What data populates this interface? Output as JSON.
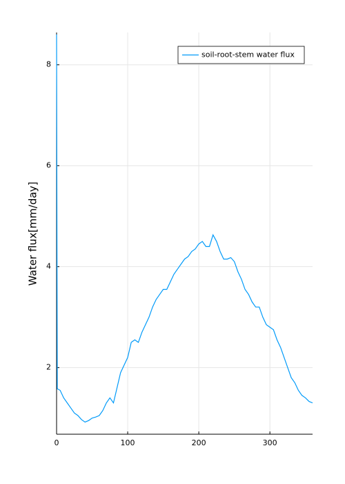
{
  "chart_data": {
    "type": "line",
    "ylabel": "Water flux[mm/day]",
    "x": [
      0,
      1,
      5,
      10,
      15,
      20,
      25,
      30,
      35,
      40,
      45,
      50,
      55,
      60,
      65,
      70,
      75,
      80,
      85,
      90,
      95,
      100,
      105,
      110,
      115,
      120,
      125,
      130,
      135,
      140,
      145,
      150,
      155,
      160,
      165,
      170,
      175,
      180,
      185,
      190,
      195,
      200,
      205,
      210,
      215,
      220,
      225,
      230,
      235,
      240,
      245,
      250,
      255,
      260,
      265,
      270,
      275,
      280,
      285,
      290,
      295,
      300,
      305,
      310,
      315,
      320,
      325,
      330,
      335,
      340,
      345,
      350,
      355,
      360
    ],
    "series": [
      {
        "name": "soil-root-stem water flux",
        "color": "#009af9",
        "values": [
          8.6,
          1.58,
          1.55,
          1.4,
          1.3,
          1.2,
          1.1,
          1.05,
          0.97,
          0.92,
          0.95,
          1.0,
          1.02,
          1.05,
          1.15,
          1.3,
          1.4,
          1.3,
          1.6,
          1.9,
          2.05,
          2.2,
          2.5,
          2.55,
          2.5,
          2.7,
          2.85,
          3.0,
          3.2,
          3.35,
          3.45,
          3.55,
          3.55,
          3.7,
          3.85,
          3.95,
          4.05,
          4.15,
          4.2,
          4.3,
          4.35,
          4.45,
          4.5,
          4.4,
          4.4,
          4.63,
          4.5,
          4.3,
          4.15,
          4.15,
          4.18,
          4.1,
          3.9,
          3.75,
          3.55,
          3.45,
          3.3,
          3.2,
          3.2,
          3.0,
          2.85,
          2.8,
          2.75,
          2.55,
          2.4,
          2.2,
          2.0,
          1.8,
          1.7,
          1.55,
          1.45,
          1.4,
          1.33,
          1.3
        ]
      }
    ],
    "xlim": [
      0,
      360
    ],
    "xticks": [
      0,
      100,
      200,
      300
    ],
    "ylim": [
      0.68,
      8.64
    ],
    "yticks": [
      2,
      4,
      6,
      8
    ],
    "grid": true,
    "legend": "top-right"
  }
}
